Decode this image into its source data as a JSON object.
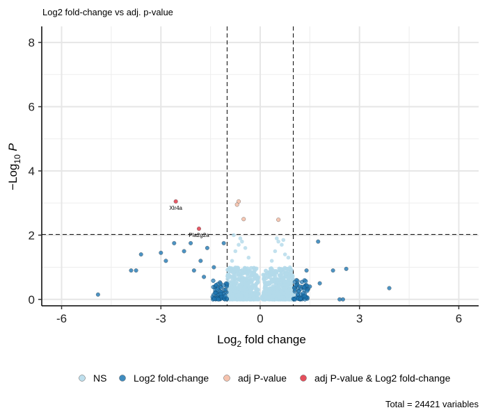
{
  "chart_data": {
    "type": "scatter",
    "subtitle": "Log2 fold-change vs adj. p-value",
    "xlabel": {
      "prefix": "Log",
      "sub": "2",
      "suffix": " fold change"
    },
    "ylabel": {
      "prefix": "−Log",
      "sub": "10",
      "suffix": " P"
    },
    "xlim": [
      -6.6,
      6.6
    ],
    "ylim": [
      -0.2,
      8.5
    ],
    "x_ticks": [
      -6,
      -3,
      0,
      3,
      6
    ],
    "y_ticks": [
      0,
      2,
      4,
      6,
      8
    ],
    "x_tick_labels": [
      "-6",
      "-3",
      "0",
      "3",
      "6"
    ],
    "y_tick_labels": [
      "0",
      "2",
      "4",
      "6",
      "8"
    ],
    "grid": true,
    "fc_cutoff": [
      -1,
      1
    ],
    "p_cutoff": 2.02,
    "legend_position": "bottom",
    "caption": "Total = 24421 variables",
    "series": [
      {
        "name": "NS",
        "color": "#b3d9ea",
        "points": [
          [
            -0.9,
            0.9
          ],
          [
            -0.8,
            0.7
          ],
          [
            -0.7,
            0.5
          ],
          [
            -0.6,
            0.4
          ],
          [
            -0.5,
            0.3
          ],
          [
            -0.4,
            0.2
          ],
          [
            -0.3,
            0.1
          ],
          [
            -0.2,
            0.05
          ],
          [
            0.2,
            0.05
          ],
          [
            0.3,
            0.1
          ],
          [
            0.4,
            0.2
          ],
          [
            0.5,
            0.3
          ],
          [
            0.6,
            0.45
          ],
          [
            0.7,
            0.6
          ],
          [
            0.8,
            0.8
          ],
          [
            0.9,
            1.0
          ],
          [
            -0.85,
            1.2
          ],
          [
            -0.75,
            1.5
          ],
          [
            -0.65,
            1.7
          ],
          [
            -0.55,
            1.8
          ],
          [
            -0.45,
            1.6
          ],
          [
            -0.35,
            1.3
          ],
          [
            0.35,
            1.2
          ],
          [
            0.45,
            1.5
          ],
          [
            0.55,
            1.8
          ],
          [
            0.65,
            1.7
          ],
          [
            0.75,
            1.4
          ],
          [
            0.85,
            1.3
          ],
          [
            -0.8,
            2.0
          ],
          [
            -0.6,
            1.9
          ],
          [
            0.5,
            1.9
          ],
          [
            0.7,
            1.85
          ]
        ]
      },
      {
        "name": "Log2 fold-change",
        "color": "#1f78b4",
        "points": [
          [
            -4.9,
            0.15
          ],
          [
            -3.9,
            0.9
          ],
          [
            -3.75,
            0.9
          ],
          [
            -3.6,
            1.4
          ],
          [
            -3.0,
            1.45
          ],
          [
            -2.85,
            1.2
          ],
          [
            -2.6,
            1.75
          ],
          [
            -2.3,
            1.5
          ],
          [
            -2.1,
            1.75
          ],
          [
            -2.0,
            0.9
          ],
          [
            -1.8,
            1.2
          ],
          [
            -1.7,
            0.7
          ],
          [
            -1.6,
            1.6
          ],
          [
            -1.4,
            1.0
          ],
          [
            -1.2,
            0.5
          ],
          [
            -1.1,
            1.75
          ],
          [
            -1.05,
            0.3
          ],
          [
            1.05,
            0.3
          ],
          [
            1.1,
            0.6
          ],
          [
            1.2,
            0.4
          ],
          [
            1.4,
            0.9
          ],
          [
            1.5,
            0.4
          ],
          [
            1.75,
            1.8
          ],
          [
            1.8,
            0.5
          ],
          [
            2.2,
            0.9
          ],
          [
            2.4,
            0.0
          ],
          [
            2.5,
            0.0
          ],
          [
            2.6,
            0.95
          ],
          [
            3.9,
            0.35
          ]
        ]
      },
      {
        "name": "adj P-value",
        "color": "#f4b9a0",
        "points": [
          [
            -0.65,
            3.05
          ],
          [
            -0.7,
            2.95
          ],
          [
            -0.5,
            2.5
          ],
          [
            0.55,
            2.48
          ]
        ]
      },
      {
        "name": "adj P-value & Log2 fold-change",
        "color": "#e03040",
        "points": [
          [
            -2.55,
            3.05
          ],
          [
            -1.85,
            2.2
          ]
        ]
      }
    ],
    "annotations": [
      {
        "label": "Xlr4a",
        "x": -2.55,
        "y": 3.05
      },
      {
        "label": "Pla2g2a",
        "x": -1.85,
        "y": 2.2
      }
    ]
  }
}
